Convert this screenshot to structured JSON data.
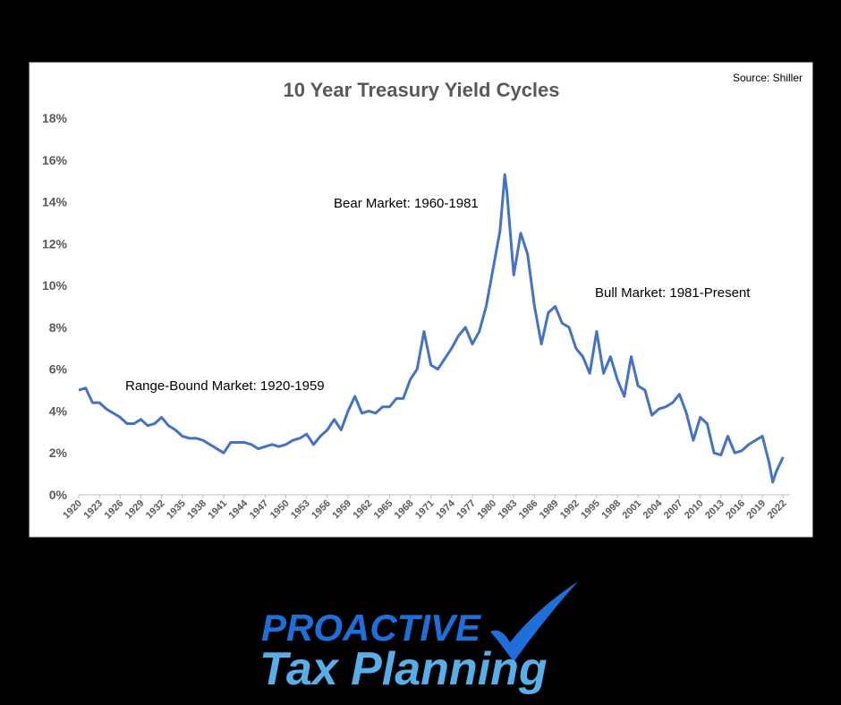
{
  "chart_data": {
    "type": "line",
    "title": "10 Year Treasury Yield Cycles",
    "source": "Source: Shiller",
    "annotations": [
      "Range-Bound Market: 1920-1959",
      "Bear Market: 1960-1981",
      "Bull Market: 1981-Present"
    ],
    "x": [
      1920,
      1921,
      1922,
      1923,
      1924,
      1925,
      1926,
      1927,
      1928,
      1929,
      1930,
      1931,
      1932,
      1933,
      1934,
      1935,
      1936,
      1937,
      1938,
      1939,
      1940,
      1941,
      1942,
      1943,
      1944,
      1945,
      1946,
      1947,
      1948,
      1949,
      1950,
      1951,
      1952,
      1953,
      1954,
      1955,
      1956,
      1957,
      1958,
      1959,
      1960,
      1961,
      1962,
      1963,
      1964,
      1965,
      1966,
      1967,
      1968,
      1969,
      1970,
      1971,
      1972,
      1973,
      1974,
      1975,
      1976,
      1977,
      1978,
      1979,
      1980,
      1981,
      1981.7,
      1982,
      1983,
      1984,
      1985,
      1986,
      1987,
      1988,
      1989,
      1990,
      1991,
      1992,
      1993,
      1994,
      1995,
      1996,
      1997,
      1998,
      1999,
      2000,
      2001,
      2002,
      2003,
      2004,
      2005,
      2006,
      2007,
      2008,
      2009,
      2010,
      2011,
      2012,
      2013,
      2014,
      2015,
      2016,
      2017,
      2018,
      2019,
      2020,
      2020.5,
      2021,
      2022
    ],
    "series": [
      {
        "name": "10 Year Treasury Yield",
        "color": "#4472c4",
        "values": [
          5.0,
          5.1,
          4.4,
          4.4,
          4.1,
          3.9,
          3.7,
          3.4,
          3.4,
          3.6,
          3.3,
          3.4,
          3.7,
          3.3,
          3.1,
          2.8,
          2.7,
          2.7,
          2.6,
          2.4,
          2.2,
          2.0,
          2.5,
          2.5,
          2.5,
          2.4,
          2.2,
          2.3,
          2.4,
          2.3,
          2.4,
          2.6,
          2.7,
          2.9,
          2.4,
          2.8,
          3.1,
          3.6,
          3.1,
          4.0,
          4.7,
          3.9,
          4.0,
          3.9,
          4.2,
          4.2,
          4.6,
          4.6,
          5.5,
          6.0,
          7.8,
          6.2,
          6.0,
          6.5,
          7.0,
          7.6,
          8.0,
          7.2,
          7.8,
          9.0,
          10.8,
          12.6,
          15.3,
          14.5,
          10.5,
          12.5,
          11.5,
          9.0,
          7.2,
          8.7,
          9.0,
          8.2,
          8.0,
          7.0,
          6.6,
          5.8,
          7.8,
          5.8,
          6.6,
          5.5,
          4.7,
          6.6,
          5.2,
          5.0,
          3.8,
          4.1,
          4.2,
          4.4,
          4.8,
          3.9,
          2.6,
          3.7,
          3.4,
          2.0,
          1.9,
          2.8,
          2.0,
          2.1,
          2.4,
          2.6,
          2.8,
          1.5,
          0.6,
          1.1,
          1.8
        ]
      }
    ],
    "xlim": [
      1920,
      2023
    ],
    "xticks": [
      1920,
      1923,
      1926,
      1929,
      1932,
      1935,
      1938,
      1941,
      1944,
      1947,
      1950,
      1953,
      1956,
      1959,
      1962,
      1965,
      1968,
      1971,
      1974,
      1977,
      1980,
      1983,
      1986,
      1989,
      1992,
      1995,
      1998,
      2001,
      2004,
      2007,
      2010,
      2013,
      2016,
      2019,
      2022
    ],
    "ylim": [
      0,
      18
    ],
    "yticks": [
      {
        "value": 0,
        "label": "0%"
      },
      {
        "value": 2,
        "label": "2%"
      },
      {
        "value": 4,
        "label": "4%"
      },
      {
        "value": 6,
        "label": "6%"
      },
      {
        "value": 8,
        "label": "8%"
      },
      {
        "value": 10,
        "label": "10%"
      },
      {
        "value": 12,
        "label": "12%"
      },
      {
        "value": 14,
        "label": "14%"
      },
      {
        "value": 16,
        "label": "16%"
      },
      {
        "value": 18,
        "label": "18%"
      }
    ],
    "grid": false
  },
  "logo": {
    "line1": "PROACTIVE",
    "line2": "Tax Planning"
  }
}
